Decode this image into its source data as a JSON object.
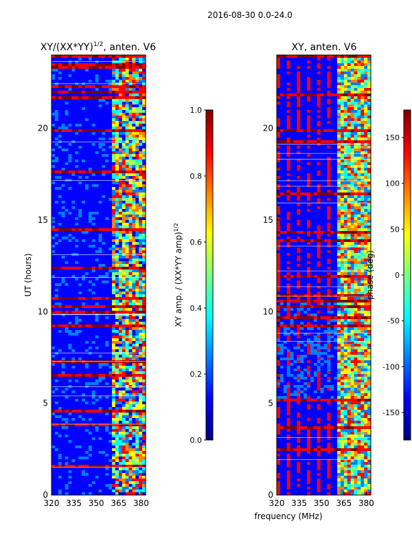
{
  "figure": {
    "suptitle": "2016-08-30 0.0-24.0",
    "xlabel": "frequency (MHz)"
  },
  "chart_data": [
    {
      "type": "heatmap",
      "title": "XY/(XX*YY)^1/2, anten. V6",
      "title_main": "XY/(XX*YY)",
      "title_sup": "1/2",
      "title_tail": ", anten. V6",
      "xlabel": "",
      "ylabel": "UT (hours)",
      "xlim": [
        320,
        383
      ],
      "ylim": [
        0,
        24
      ],
      "xticks": [
        "320",
        "335",
        "350",
        "365",
        "380"
      ],
      "yticks": [
        "0",
        "5",
        "10",
        "15",
        "20"
      ],
      "colorbar": {
        "label_main": "XY amp. / (XX*YY amp)",
        "label_sup": "1/2",
        "range": [
          0.0,
          1.0
        ],
        "ticks": [
          "0.0",
          "0.2",
          "0.4",
          "0.6",
          "0.8",
          "1.0"
        ]
      },
      "colormap": "jet"
    },
    {
      "type": "heatmap",
      "title": "XY, anten. V6",
      "xlabel": "frequency (MHz)",
      "ylabel": "",
      "xlim": [
        320,
        383
      ],
      "ylim": [
        0,
        24
      ],
      "xticks": [
        "320",
        "335",
        "350",
        "365",
        "380"
      ],
      "yticks": [
        "0",
        "5",
        "10",
        "15",
        "20"
      ],
      "colorbar": {
        "label_main": "phase (deg)",
        "range": [
          -180,
          180
        ],
        "ticks": [
          "-150",
          "-100",
          "-50",
          "0",
          "50",
          "100",
          "150"
        ]
      },
      "colormap": "jet"
    }
  ],
  "colors": {
    "jet": [
      "#00007f",
      "#0000ff",
      "#007fff",
      "#00ffff",
      "#7fff7f",
      "#ffff00",
      "#ff7f00",
      "#ff0000",
      "#7f0000"
    ]
  }
}
